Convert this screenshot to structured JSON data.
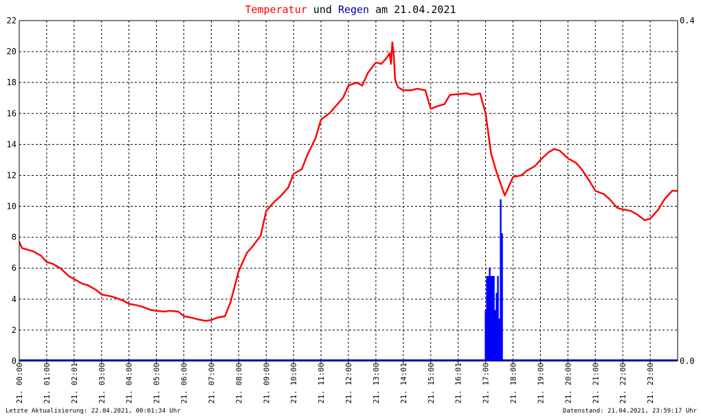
{
  "chart_data": {
    "type": "line",
    "title": {
      "parts": [
        {
          "text": "Temperatur",
          "color": "#ff0000"
        },
        {
          "text": " und ",
          "color": "#000000"
        },
        {
          "text": "Regen",
          "color": "#0000aa"
        },
        {
          "text": " am 21.04.2021",
          "color": "#000000"
        }
      ]
    },
    "xlim": [
      0,
      24
    ],
    "ylim_left": [
      0,
      22
    ],
    "ylim_right": [
      0,
      0.4
    ],
    "y_left_ticks": [
      "0",
      "2",
      "4",
      "6",
      "8",
      "10",
      "12",
      "14",
      "16",
      "18",
      "20",
      "22"
    ],
    "y_right_ticks": [
      "0.0",
      "0.4"
    ],
    "x_ticks": [
      "21. 00:00",
      "21. 01:00",
      "21. 02:01",
      "21. 03:00",
      "21. 04:00",
      "21. 05:00",
      "21. 06:00",
      "21. 07:00",
      "21. 08:00",
      "21. 09:00",
      "21. 10:00",
      "21. 11:00",
      "21. 12:00",
      "21. 13:00",
      "21. 14:01",
      "21. 15:00",
      "21. 16:01",
      "21. 17:00",
      "21. 18:00",
      "21. 19:00",
      "21. 20:00",
      "21. 21:00",
      "21. 22:00",
      "21. 23:00"
    ],
    "grid": true,
    "colors": {
      "temperature": "#ff0000",
      "rain": "#0000ff"
    },
    "series": [
      {
        "name": "Temperatur",
        "color": "#ff0000",
        "x": [
          0,
          0.1,
          0.5,
          0.8,
          1.0,
          1.2,
          1.5,
          1.8,
          2.0,
          2.3,
          2.5,
          2.8,
          3.0,
          3.3,
          3.5,
          3.8,
          4.0,
          4.3,
          4.5,
          4.8,
          5.0,
          5.3,
          5.5,
          5.8,
          6.0,
          6.3,
          6.5,
          6.8,
          7.0,
          7.2,
          7.5,
          7.7,
          8.0,
          8.3,
          8.5,
          8.8,
          9.0,
          9.3,
          9.5,
          9.8,
          10.0,
          10.3,
          10.5,
          10.8,
          11.0,
          11.3,
          11.5,
          11.8,
          12.0,
          12.3,
          12.5,
          12.7,
          13.0,
          13.2,
          13.4,
          13.5,
          13.55,
          13.6,
          13.65,
          13.7,
          13.8,
          14.0,
          14.3,
          14.5,
          14.8,
          15.0,
          15.3,
          15.5,
          15.7,
          16.0,
          16.3,
          16.5,
          16.8,
          17.0,
          17.2,
          17.4,
          17.6,
          17.7,
          18.0,
          18.3,
          18.5,
          18.8,
          19.0,
          19.3,
          19.5,
          19.7,
          20.0,
          20.3,
          20.5,
          20.8,
          21.0,
          21.3,
          21.5,
          21.8,
          22.0,
          22.3,
          22.5,
          22.8,
          23.0,
          23.3,
          23.5,
          23.8,
          24.0
        ],
        "y": [
          7.7,
          7.3,
          7.1,
          6.8,
          6.4,
          6.3,
          6.0,
          5.5,
          5.3,
          5.0,
          4.9,
          4.6,
          4.3,
          4.2,
          4.1,
          3.9,
          3.7,
          3.6,
          3.5,
          3.3,
          3.25,
          3.2,
          3.25,
          3.2,
          2.9,
          2.8,
          2.7,
          2.6,
          2.65,
          2.8,
          2.9,
          3.8,
          5.8,
          7.0,
          7.4,
          8.1,
          9.7,
          10.3,
          10.6,
          11.2,
          12.1,
          12.4,
          13.3,
          14.4,
          15.6,
          16.0,
          16.4,
          17.0,
          17.8,
          18.0,
          17.8,
          18.6,
          19.3,
          19.2,
          19.6,
          19.9,
          19.2,
          20.6,
          19.8,
          18.2,
          17.7,
          17.5,
          17.5,
          17.6,
          17.5,
          16.3,
          16.5,
          16.6,
          17.2,
          17.25,
          17.3,
          17.2,
          17.3,
          16.0,
          13.4,
          12.2,
          11.2,
          10.7,
          11.9,
          12.0,
          12.3,
          12.6,
          13.0,
          13.5,
          13.7,
          13.6,
          13.1,
          12.8,
          12.4,
          11.6,
          11.0,
          10.8,
          10.5,
          9.9,
          9.8,
          9.7,
          9.5,
          9.1,
          9.2,
          9.8,
          10.4,
          11.0,
          11.0
        ]
      },
      {
        "name": "Regen",
        "color": "#0000ff",
        "axis": "right",
        "x": [
          17.0,
          17.05,
          17.1,
          17.15,
          17.2,
          17.25,
          17.3,
          17.35,
          17.4,
          17.45,
          17.5,
          17.55,
          17.6
        ],
        "y": [
          0.06,
          0.1,
          0.1,
          0.11,
          0.1,
          0.1,
          0.1,
          0.06,
          0.08,
          0.1,
          0.05,
          0.19,
          0.15
        ]
      }
    ],
    "footer_left": "Letzte Aktualisierung: 22.04.2021, 00:01:34 Uhr",
    "footer_right": "Datenstand: 21.04.2021, 23:59:17 Uhr"
  }
}
